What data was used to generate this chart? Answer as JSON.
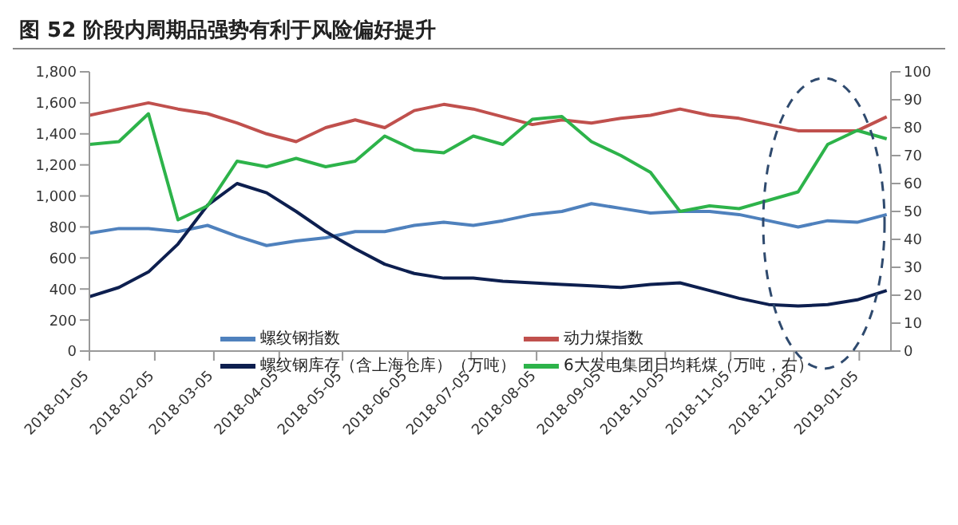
{
  "chart_data": {
    "type": "line",
    "title": "图 52 阶段内周期品强势有利于风险偏好提升",
    "x": [
      "2018-01-05",
      "2018-01-19",
      "2018-02-02",
      "2018-02-16",
      "2018-03-02",
      "2018-03-16",
      "2018-03-30",
      "2018-04-13",
      "2018-04-27",
      "2018-05-11",
      "2018-05-25",
      "2018-06-08",
      "2018-06-22",
      "2018-07-06",
      "2018-07-20",
      "2018-08-03",
      "2018-08-17",
      "2018-08-31",
      "2018-09-14",
      "2018-09-28",
      "2018-10-12",
      "2018-10-26",
      "2018-11-09",
      "2018-11-23",
      "2018-12-07",
      "2018-12-21",
      "2019-01-04",
      "2019-01-18"
    ],
    "series": [
      {
        "name": "螺纹钢指数",
        "color": "#4f81bd",
        "values": [
          760,
          790,
          790,
          770,
          810,
          740,
          680,
          710,
          730,
          770,
          770,
          810,
          830,
          810,
          840,
          880,
          900,
          950,
          920,
          890,
          900,
          900,
          880,
          840,
          800,
          840,
          830,
          880
        ]
      },
      {
        "name": "动力煤指数",
        "color": "#c0504d",
        "values": [
          1520,
          1560,
          1600,
          1560,
          1530,
          1470,
          1400,
          1350,
          1440,
          1490,
          1440,
          1550,
          1590,
          1560,
          1510,
          1460,
          1490,
          1470,
          1500,
          1520,
          1560,
          1520,
          1500,
          1460,
          1420,
          1420,
          1420,
          1510
        ]
      },
      {
        "name": "螺纹钢库存（含上海仓库）（万吨）",
        "color": "#0d1f4f",
        "values": [
          350,
          410,
          510,
          690,
          940,
          1080,
          1020,
          900,
          770,
          660,
          560,
          500,
          470,
          470,
          450,
          440,
          430,
          420,
          410,
          430,
          440,
          390,
          340,
          300,
          290,
          300,
          330,
          390
        ]
      },
      {
        "name": "6大发电集团日均耗煤（万吨，右）",
        "color": "#2db34a",
        "axis": "y2",
        "values": [
          74,
          75,
          85,
          47,
          52,
          68,
          66,
          69,
          66,
          68,
          77,
          72,
          71,
          77,
          74,
          83,
          84,
          75,
          70,
          64,
          50,
          52,
          51,
          54,
          57,
          74,
          79,
          76
        ]
      }
    ],
    "xlim": [
      "2018-01-05",
      "2019-01-20"
    ],
    "xticks": [
      "2018-01-05",
      "2018-02-05",
      "2018-03-05",
      "2018-04-05",
      "2018-05-05",
      "2018-06-05",
      "2018-07-05",
      "2018-08-05",
      "2018-09-05",
      "2018-10-05",
      "2018-11-05",
      "2018-12-05",
      "2019-01-05"
    ],
    "ylim": [
      0,
      1800
    ],
    "yticks": [
      0,
      200,
      400,
      600,
      800,
      {
        "value": 1000,
        "label": "1,000"
      },
      {
        "value": 1200,
        "label": "1,200"
      },
      {
        "value": 1400,
        "label": "1,400"
      },
      {
        "value": 1600,
        "label": "1,600"
      },
      {
        "value": 1800,
        "label": "1,800"
      }
    ],
    "y2lim": [
      0,
      100
    ],
    "y2ticks": [
      0,
      10,
      20,
      30,
      40,
      50,
      60,
      70,
      80,
      90,
      100
    ],
    "legend": "bottom",
    "marker": "none",
    "line_style": "solid"
  }
}
